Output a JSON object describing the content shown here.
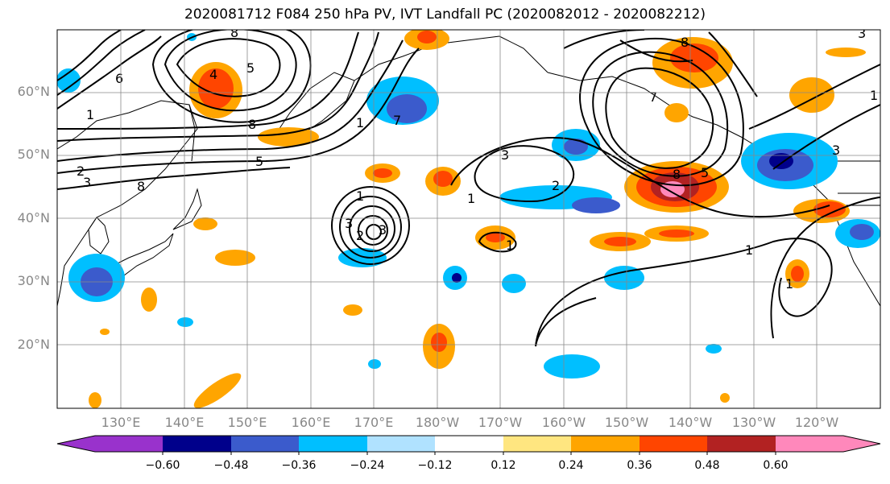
{
  "title": "2020081712 F084 250 hPa PV, IVT Landfall PC (2020082012 - 2020082212)",
  "map": {
    "lat_labels": [
      "60°N",
      "50°N",
      "40°N",
      "30°N",
      "20°N"
    ],
    "lon_labels": [
      "130°E",
      "140°E",
      "150°E",
      "160°E",
      "170°E",
      "180°W",
      "170°W",
      "160°W",
      "150°W",
      "140°W",
      "130°W",
      "120°W"
    ],
    "contour_labels": [
      "8",
      "6",
      "4",
      "5",
      "1",
      "8",
      "5",
      "2",
      "3",
      "1",
      "2",
      "3",
      "7",
      "1",
      "3",
      "2",
      "8",
      "5",
      "1",
      "3",
      "1",
      "1",
      "1",
      "8",
      "7",
      "3",
      "8",
      "3",
      "1"
    ]
  },
  "colorbar": {
    "ticks": [
      "−0.60",
      "−0.48",
      "−0.36",
      "−0.24",
      "−0.12",
      "0.12",
      "0.24",
      "0.36",
      "0.48",
      "0.60"
    ],
    "colors": [
      "#9932cc",
      "#00008b",
      "#3b5bcc",
      "#00bfff",
      "#b0e2ff",
      "#ffffff",
      "#ffe680",
      "#ffa500",
      "#ff4500",
      "#b22222",
      "#ff88bb"
    ]
  }
}
